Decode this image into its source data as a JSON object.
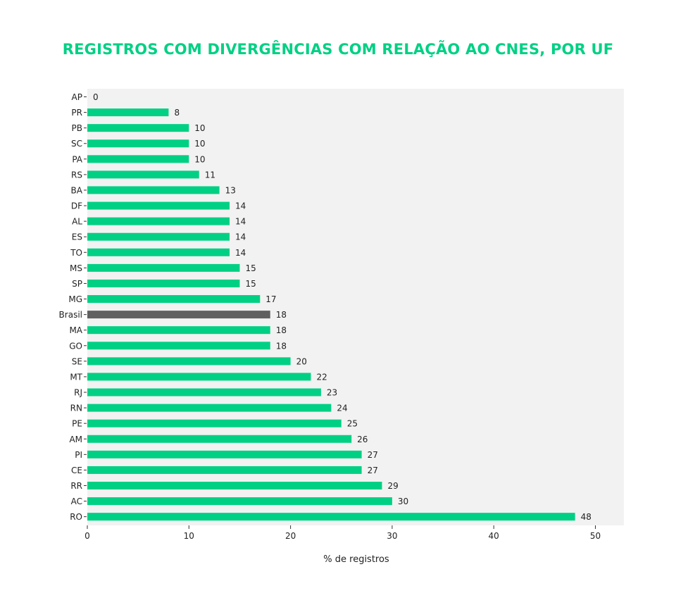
{
  "title": "REGISTROS COM DIVERGÊNCIAS COM RELAÇÃO AO CNES, POR UF",
  "colors": {
    "title": "#00d084",
    "bar": "#00d084",
    "highlight": "#606060",
    "plot_bg": "#f2f2f2"
  },
  "chart_data": {
    "type": "bar",
    "orientation": "horizontal",
    "categories": [
      "AP",
      "PR",
      "PB",
      "SC",
      "PA",
      "RS",
      "BA",
      "DF",
      "AL",
      "ES",
      "TO",
      "MS",
      "SP",
      "MG",
      "Brasil",
      "MA",
      "GO",
      "SE",
      "MT",
      "RJ",
      "RN",
      "PE",
      "AM",
      "PI",
      "CE",
      "RR",
      "AC",
      "RO"
    ],
    "values": [
      0,
      8,
      10,
      10,
      10,
      11,
      13,
      14,
      14,
      14,
      14,
      15,
      15,
      17,
      18,
      18,
      18,
      20,
      22,
      23,
      24,
      25,
      26,
      27,
      27,
      29,
      30,
      48
    ],
    "highlight_category": "Brasil",
    "xlabel": "% de registros",
    "ylabel": "",
    "xlim": [
      0,
      53
    ],
    "xticks": [
      0,
      10,
      20,
      30,
      40,
      50
    ],
    "grid": false,
    "legend": "none"
  }
}
